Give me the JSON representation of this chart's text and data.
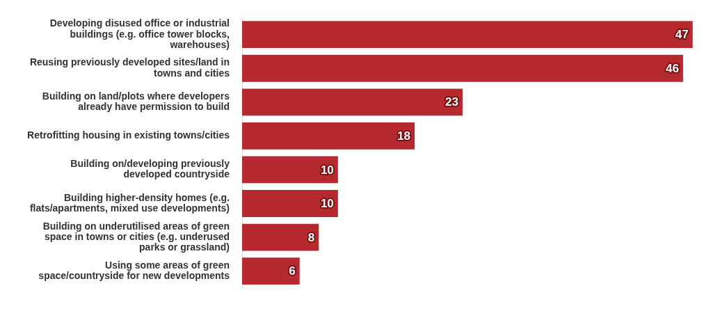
{
  "chart_data": {
    "type": "bar",
    "orientation": "horizontal",
    "categories": [
      "Developing disused office or industrial buildings (e.g. office tower blocks, warehouses)",
      "Reusing previously developed sites/land in towns and cities",
      "Building on land/plots where developers already have permission to build",
      "Retrofitting housing in existing towns/cities",
      "Building on/developing previously developed countryside",
      "Building higher-density homes (e.g. flats/apartments, mixed use developments)",
      "Building on underutilised areas of green space in towns or cities (e.g. underused parks or grassland)",
      "Using some areas of green space/countryside for new developments"
    ],
    "values": [
      47,
      46,
      23,
      18,
      10,
      10,
      8,
      6
    ],
    "color": "#b5292f",
    "data_labels": true,
    "legend": false
  }
}
